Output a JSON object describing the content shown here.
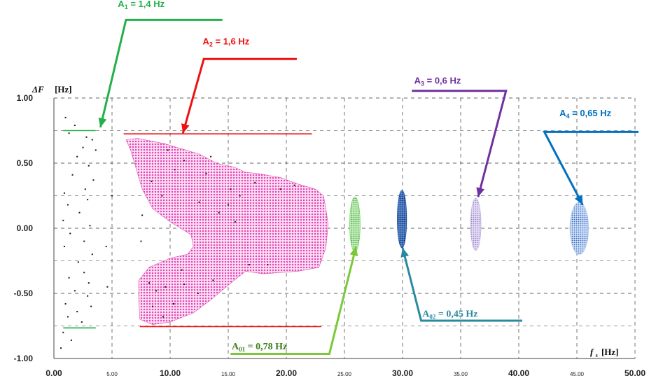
{
  "chart_data": {
    "type": "scatter",
    "xlabel": "f",
    "xlabel_sub": "s",
    "xunit": "[Hz]",
    "ylabel": "ΔF",
    "yunit": "[Hz]",
    "xlim": [
      0,
      50
    ],
    "ylim": [
      -1,
      1
    ],
    "grid": "dashed",
    "x_ticks": [
      {
        "value": 0,
        "label": "0.00",
        "style": "big"
      },
      {
        "value": 5,
        "label": "5.00",
        "style": "small"
      },
      {
        "value": 10,
        "label": "10.00",
        "style": "big"
      },
      {
        "value": 15,
        "label": "15.00",
        "style": "small"
      },
      {
        "value": 20,
        "label": "20.00",
        "style": "big"
      },
      {
        "value": 25,
        "label": "25.00",
        "style": "small"
      },
      {
        "value": 30,
        "label": "30.00",
        "style": "big"
      },
      {
        "value": 35,
        "label": "35.00",
        "style": "small"
      },
      {
        "value": 40,
        "label": "40.00",
        "style": "big"
      },
      {
        "value": 45,
        "label": "45.00",
        "style": "small"
      },
      {
        "value": 50,
        "label": "50.00",
        "style": "big"
      }
    ],
    "y_ticks": [
      {
        "value": 1,
        "label": "1.00"
      },
      {
        "value": 0.5,
        "label": "0.50"
      },
      {
        "value": 0,
        "label": "0.00"
      },
      {
        "value": -0.5,
        "label": "-0.50"
      },
      {
        "value": -1,
        "label": "-1.00"
      }
    ],
    "regions": [
      {
        "name_main": "A",
        "name_sub": "1",
        "value_text": " = 1,4 Hz",
        "color": "#22b04a",
        "font": "sans",
        "fill": "none",
        "hlines": [
          {
            "x1": 0.8,
            "x2": 3.6,
            "y": 0.75
          },
          {
            "x1": 0.8,
            "x2": 3.6,
            "y": -0.765
          }
        ],
        "arrow_tail": {
          "x": 14.5,
          "y": 1.6
        },
        "arrow_elbow": {
          "x": 6.2,
          "y": 1.6
        },
        "arrow_head": {
          "x": 4.0,
          "y": 0.775
        },
        "label_pos": {
          "x": 5.5,
          "y": 1.7
        }
      },
      {
        "name_main": "A",
        "name_sub": "2",
        "value_text": " = 1,6 Hz",
        "color": "#ee1111",
        "font": "sans",
        "fill": "#f060c8",
        "polygon": [
          [
            6.2,
            0.68
          ],
          [
            7.2,
            0.69
          ],
          [
            9.5,
            0.65
          ],
          [
            12.5,
            0.57
          ],
          [
            14,
            0.5
          ],
          [
            15.5,
            0.47
          ],
          [
            16.5,
            0.43
          ],
          [
            17.6,
            0.42
          ],
          [
            19.5,
            0.39
          ],
          [
            21,
            0.34
          ],
          [
            22.5,
            0.3
          ],
          [
            23.2,
            0.25
          ],
          [
            23.4,
            0.15
          ],
          [
            23.6,
            0.03
          ],
          [
            23.4,
            -0.15
          ],
          [
            22.8,
            -0.3
          ],
          [
            21,
            -0.33
          ],
          [
            18,
            -0.35
          ],
          [
            16.5,
            -0.33
          ],
          [
            15.5,
            -0.4
          ],
          [
            13.5,
            -0.55
          ],
          [
            12,
            -0.65
          ],
          [
            10,
            -0.72
          ],
          [
            8.5,
            -0.74
          ],
          [
            7.4,
            -0.7
          ],
          [
            7.3,
            -0.55
          ],
          [
            7.3,
            -0.4
          ],
          [
            8.2,
            -0.3
          ],
          [
            10,
            -0.23
          ],
          [
            11.5,
            -0.2
          ],
          [
            12,
            -0.14
          ],
          [
            11.8,
            -0.05
          ],
          [
            10,
            0.05
          ],
          [
            8.5,
            0.15
          ],
          [
            7.6,
            0.3
          ],
          [
            7,
            0.48
          ],
          [
            6.6,
            0.6
          ]
        ],
        "hlines": [
          {
            "x1": 6.0,
            "x2": 22.2,
            "y": 0.725
          },
          {
            "x1": 7.4,
            "x2": 23.0,
            "y": -0.755
          }
        ],
        "arrow_tail": {
          "x": 20.9,
          "y": 1.3
        },
        "arrow_elbow": {
          "x": 12.9,
          "y": 1.3
        },
        "arrow_head": {
          "x": 11.1,
          "y": 0.73
        },
        "label_pos": {
          "x": 12.8,
          "y": 1.41
        }
      },
      {
        "name_main": "A",
        "name_sub": "01",
        "value_text": " = 0,78 Hz",
        "color": "#7cc83a",
        "font": "serif",
        "label_color": "#3f7f1f",
        "fill": "#7cd06a",
        "ellipse": {
          "cx": 25.9,
          "cy": 0.03,
          "rx": 0.45,
          "ry": 0.21
        },
        "arrow_tail": {
          "x": 15.2,
          "y": -0.965
        },
        "arrow_elbow": {
          "x": 23.7,
          "y": -0.965
        },
        "arrow_head": {
          "x": 26.0,
          "y": -0.14
        },
        "label_pos": {
          "x": 15.3,
          "y": -0.93
        }
      },
      {
        "name_main": "A",
        "name_sub": "02",
        "value_text": " = 0,45 Hz",
        "color": "#2a8aa0",
        "font": "serif",
        "label_color": "#2a8aa0",
        "fill": "#1b4ea0",
        "ellipse": {
          "cx": 29.95,
          "cy": 0.07,
          "rx": 0.4,
          "ry": 0.22
        },
        "arrow_tail": {
          "x": 40.3,
          "y": -0.71
        },
        "arrow_elbow": {
          "x": 31.6,
          "y": -0.71
        },
        "arrow_head": {
          "x": 30.0,
          "y": -0.15
        },
        "label_pos": {
          "x": 31.7,
          "y": -0.68
        }
      },
      {
        "name_main": "A",
        "name_sub": "3",
        "value_text": " = 0,6 Hz",
        "color": "#7030a0",
        "font": "sans",
        "fill": "#c6b6e6",
        "ellipse": {
          "cx": 36.3,
          "cy": 0.03,
          "rx": 0.45,
          "ry": 0.2
        },
        "arrow_tail": {
          "x": 30.8,
          "y": 1.055
        },
        "arrow_elbow": {
          "x": 38.9,
          "y": 1.055
        },
        "arrow_head": {
          "x": 36.5,
          "y": 0.24
        },
        "label_pos": {
          "x": 31.0,
          "y": 1.11
        }
      },
      {
        "name_main": "A",
        "name_sub": "4",
        "value_text": " = 0,65  Hz",
        "color": "#0070c0",
        "font": "sans",
        "fill": "#b4ccee",
        "ellipse": {
          "cx": 45.2,
          "cy": 0.0,
          "rx": 0.8,
          "ry": 0.2
        },
        "arrow_tail": {
          "x": 50.3,
          "y": 0.74
        },
        "arrow_elbow": {
          "x": 42.2,
          "y": 0.74
        },
        "arrow_head": {
          "x": 45.5,
          "y": 0.18
        },
        "label_pos": {
          "x": 43.5,
          "y": 0.86
        }
      }
    ]
  }
}
